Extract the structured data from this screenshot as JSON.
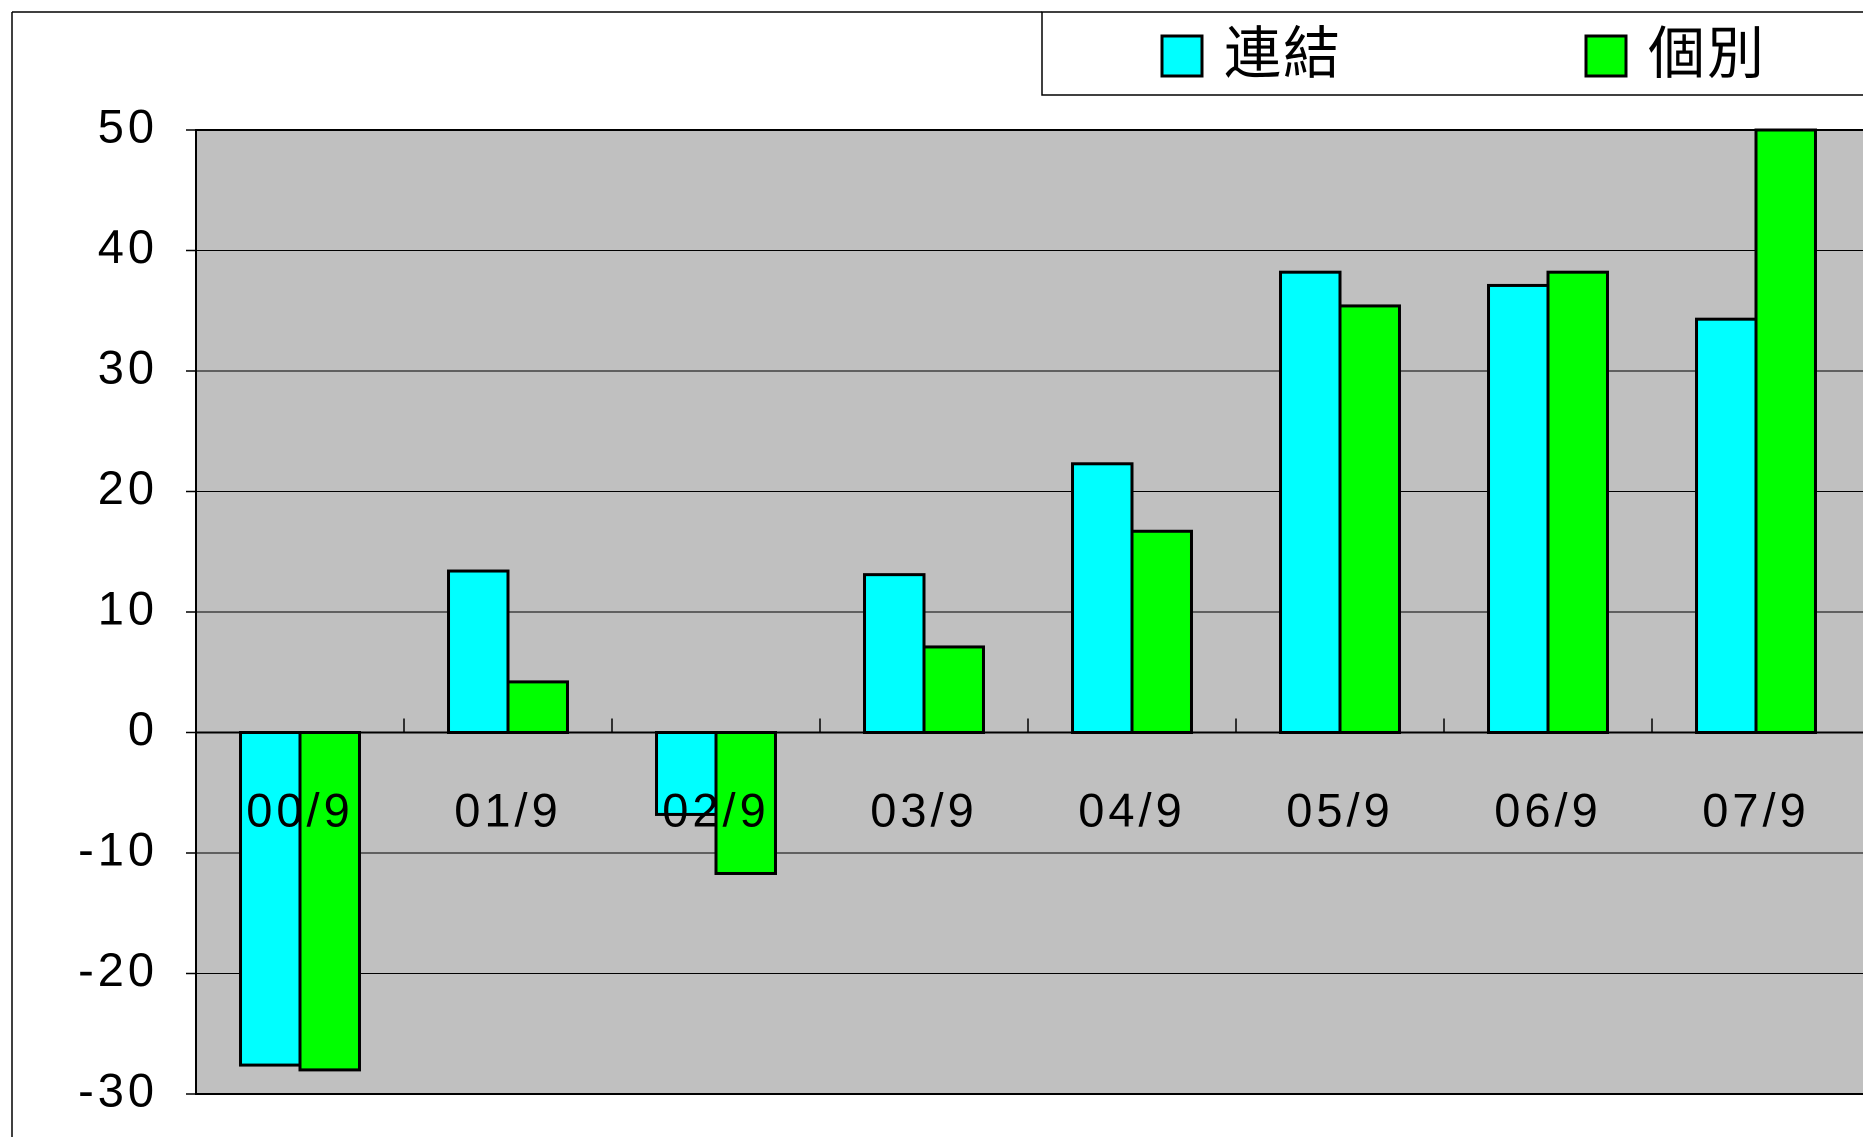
{
  "chart_data": {
    "type": "bar",
    "categories": [
      "00/9",
      "01/9",
      "02/9",
      "03/9",
      "04/9",
      "05/9",
      "06/9",
      "07/9"
    ],
    "series": [
      {
        "name": "連結",
        "color": "#00ffff",
        "values": [
          -27.6,
          13.4,
          -6.8,
          13.1,
          22.3,
          38.2,
          37.1,
          34.3
        ]
      },
      {
        "name": "個別",
        "color": "#00ff00",
        "values": [
          -28.0,
          4.2,
          -11.7,
          7.1,
          16.7,
          35.4,
          38.2,
          50
        ]
      }
    ],
    "ylim": [
      -30,
      50
    ],
    "yticks": [
      -30,
      -20,
      -10,
      0,
      10,
      20,
      30,
      40,
      50
    ],
    "grid": true,
    "background": "#c0c0c0",
    "legend": "top-right"
  }
}
